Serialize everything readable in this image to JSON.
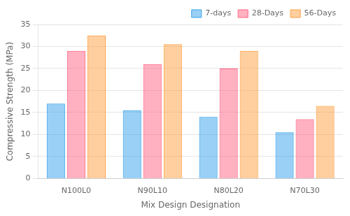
{
  "chart_data": {
    "type": "bar",
    "categories": [
      "N100L0",
      "N90L10",
      "N80L20",
      "N70L30"
    ],
    "series": [
      {
        "name": "7-days",
        "values": [
          17,
          15.5,
          14,
          10.5
        ]
      },
      {
        "name": "28-Days",
        "values": [
          29,
          26,
          25,
          13.5
        ]
      },
      {
        "name": "56-Days",
        "values": [
          32.5,
          30.5,
          29,
          16.5
        ]
      }
    ],
    "xlabel": "Mix Design Designation",
    "ylabel": "Compressive Strength (MPa)",
    "ylim": [
      0,
      35
    ],
    "yticks": [
      0,
      5,
      10,
      15,
      20,
      25,
      30,
      35
    ],
    "grid": true,
    "legend": "upper right"
  }
}
